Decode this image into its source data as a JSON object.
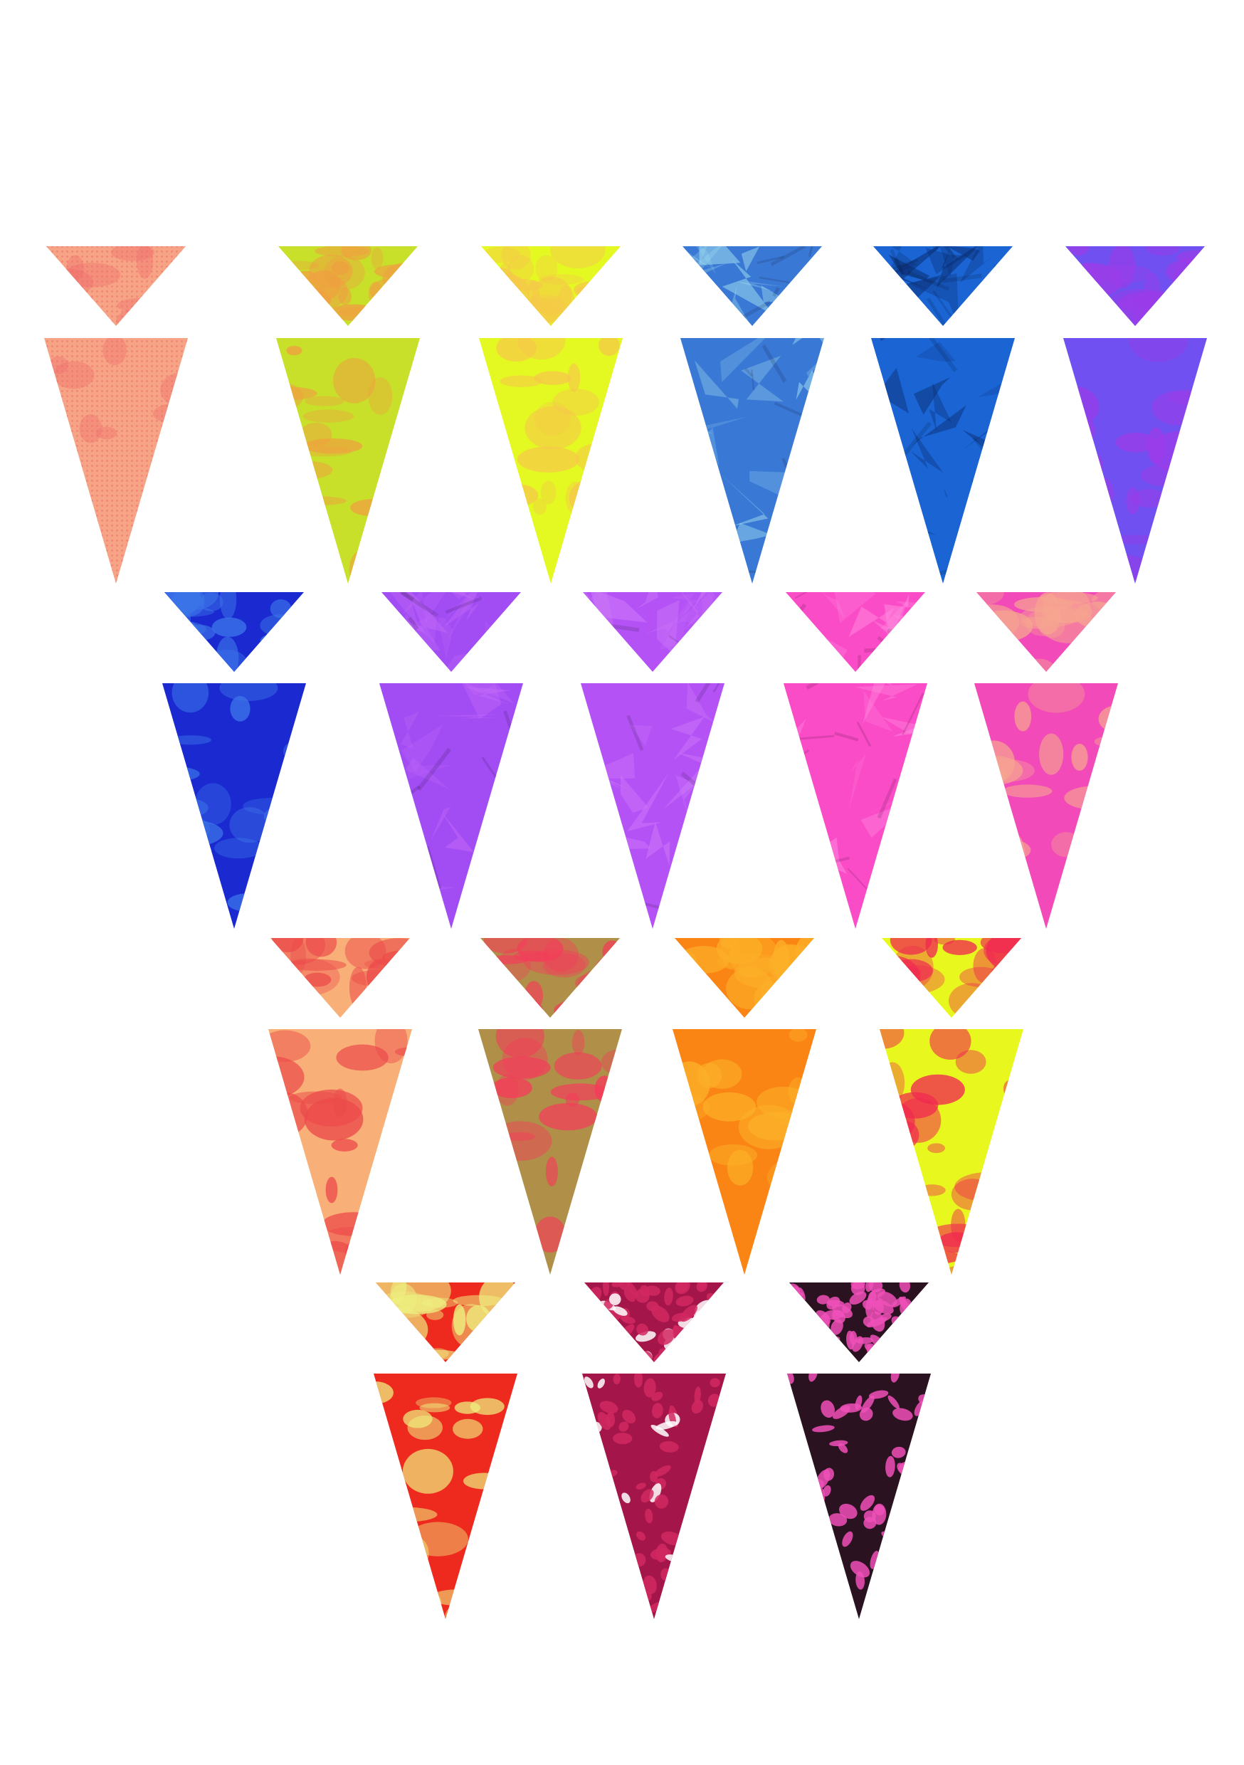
{
  "pennants": [
    {
      "row": 1,
      "col": 1,
      "base": "#f6a485",
      "accent": "#ee6a6a",
      "pattern": "halftone"
    },
    {
      "row": 1,
      "col": 2,
      "base": "#c8e02a",
      "accent": "#f0a040",
      "pattern": "blotch"
    },
    {
      "row": 1,
      "col": 3,
      "base": "#e4f822",
      "accent": "#f6c84a",
      "pattern": "blotch"
    },
    {
      "row": 1,
      "col": 4,
      "base": "#3a78d6",
      "accent": "#a8e6f0",
      "pattern": "crumple"
    },
    {
      "row": 1,
      "col": 5,
      "base": "#1a64d4",
      "accent": "#0a2a6a",
      "pattern": "crumple"
    },
    {
      "row": 1,
      "col": 6,
      "base": "#7050f0",
      "accent": "#9b3ce8",
      "pattern": "blotch"
    },
    {
      "row": 2,
      "col": 1,
      "base": "#1a2ad0",
      "accent": "#3c74e8",
      "pattern": "blotch"
    },
    {
      "row": 2,
      "col": 2,
      "base": "#a24cf4",
      "accent": "#c46af8",
      "pattern": "crumple"
    },
    {
      "row": 2,
      "col": 3,
      "base": "#b452f6",
      "accent": "#d07af8",
      "pattern": "crumple"
    },
    {
      "row": 2,
      "col": 4,
      "base": "#fb4cc8",
      "accent": "#ff8ee0",
      "pattern": "crumple"
    },
    {
      "row": 2,
      "col": 5,
      "base": "#f24ab8",
      "accent": "#f6a490",
      "pattern": "blotch"
    },
    {
      "row": 3,
      "col": 1,
      "base": "#f8b078",
      "accent": "#ec4a4a",
      "pattern": "blotch"
    },
    {
      "row": 3,
      "col": 2,
      "base": "#b09048",
      "accent": "#f43c5a",
      "pattern": "blotch"
    },
    {
      "row": 3,
      "col": 3,
      "base": "#fa8414",
      "accent": "#fcb028",
      "pattern": "blotch"
    },
    {
      "row": 3,
      "col": 4,
      "base": "#e8f81e",
      "accent": "#f02a50",
      "pattern": "blotch"
    },
    {
      "row": 4,
      "col": 1,
      "base": "#ee2a1e",
      "accent": "#eef080",
      "pattern": "blotch"
    },
    {
      "row": 4,
      "col": 2,
      "base": "#a4164a",
      "accent": "#ffffff",
      "pattern": "blobs"
    },
    {
      "row": 4,
      "col": 3,
      "base": "#2a1220",
      "accent": "#f050b8",
      "pattern": "blobs"
    }
  ]
}
